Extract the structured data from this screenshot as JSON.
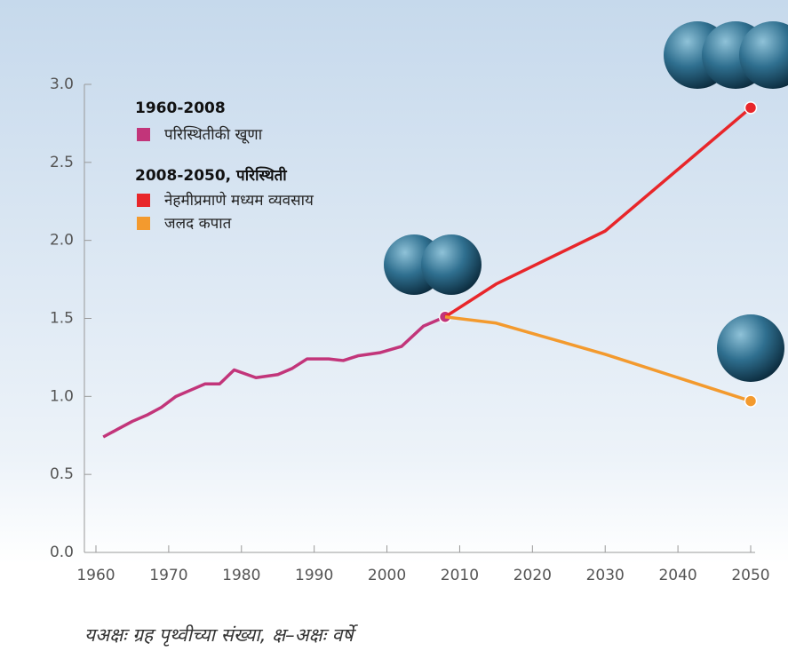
{
  "chart_data": {
    "type": "line",
    "legend_groups": [
      "1960-2008",
      "2008-2050, परिस्थिती"
    ],
    "x_axis_label": "यअक्षः ग्रह पृथ्वीच्या संख्या, क्ष–अक्षः वर्षे",
    "series": [
      {
        "name": "परिस्थितीकी खूणा",
        "color": "#c2357a",
        "x": [
          1961,
          1963,
          1965,
          1967,
          1969,
          1971,
          1973,
          1975,
          1977,
          1979,
          1982,
          1985,
          1987,
          1989,
          1992,
          1994,
          1996,
          1999,
          2002,
          2005,
          2008
        ],
        "values": [
          0.74,
          0.79,
          0.84,
          0.88,
          0.93,
          1.0,
          1.04,
          1.08,
          1.08,
          1.17,
          1.12,
          1.14,
          1.18,
          1.24,
          1.24,
          1.23,
          1.26,
          1.28,
          1.32,
          1.45,
          1.51
        ]
      },
      {
        "name": "नेहमीप्रमाणे मध्यम व्यवसाय",
        "color": "#e8262a",
        "x": [
          2008,
          2015,
          2030,
          2050
        ],
        "values": [
          1.51,
          1.72,
          2.06,
          2.85
        ]
      },
      {
        "name": "जलद कपात",
        "color": "#f39a2e",
        "x": [
          2008,
          2015,
          2030,
          2050
        ],
        "values": [
          1.51,
          1.47,
          1.27,
          0.97
        ]
      }
    ],
    "xlim": [
      1960,
      2050
    ],
    "xticks": [
      1960,
      1970,
      1980,
      1990,
      2000,
      2010,
      2020,
      2030,
      2040,
      2050
    ],
    "ylim": [
      0,
      3
    ],
    "yticks": [
      {
        "value": 0,
        "label": "0.0"
      },
      0.5,
      {
        "value": 1,
        "label": "1.0"
      },
      1.5,
      {
        "value": 2,
        "label": "2.0"
      },
      2.5,
      {
        "value": 3,
        "label": "3.0"
      }
    ],
    "grid": false
  }
}
